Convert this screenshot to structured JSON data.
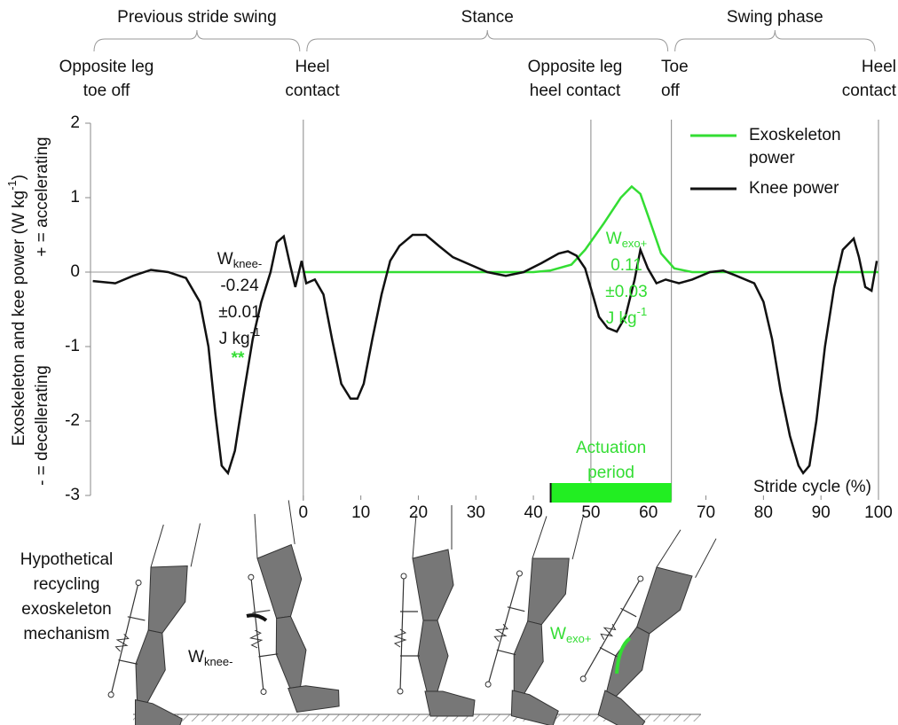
{
  "chart_data": {
    "type": "line",
    "x_label": "Stride cycle (%)",
    "y_label": {
      "main": "Exoskeleton and kee power (W kg",
      "sup": "-1",
      "close": ")"
    },
    "y_label_2": [
      "- = decellerating",
      "+ = accelerating"
    ],
    "xlim": [
      -37,
      100
    ],
    "ylim": [
      -3,
      2
    ],
    "xticks": [
      0,
      10,
      20,
      30,
      40,
      50,
      60,
      70,
      80,
      90,
      100
    ],
    "yticks": [
      -3,
      -2,
      -1,
      0,
      1,
      2
    ],
    "legend": "top-right",
    "vlines": [
      0,
      50,
      64
    ],
    "phases": [
      {
        "label": "Previous stride swing",
        "start": -37,
        "end": 0
      },
      {
        "label": "Stance",
        "start": 0,
        "end": 64
      },
      {
        "label": "Swing phase",
        "start": 64,
        "end": 100
      }
    ],
    "events": [
      [
        "Opposite leg",
        "toe off"
      ],
      [
        "Heel",
        "contact"
      ],
      [
        "Opposite leg",
        "heel contact"
      ],
      [
        "Toe",
        "off"
      ],
      [
        "Heel",
        "contact"
      ]
    ],
    "series": [
      {
        "name": "Exoskeleton power",
        "color": "#33dd33",
        "x": [
          0,
          20,
          40,
          42.9,
          46.6,
          49,
          52.2,
          55.2,
          57.1,
          58.6,
          60.2,
          62.2,
          64.5,
          67.6,
          80,
          100
        ],
        "values": [
          0,
          0,
          0,
          0.02,
          0.1,
          0.3,
          0.65,
          1.0,
          1.15,
          1.05,
          0.7,
          0.25,
          0.05,
          0,
          0,
          0
        ]
      },
      {
        "name": "Knee power",
        "color": "#111111",
        "x": [
          -36.6,
          -32.7,
          -29.6,
          -26.5,
          -23.5,
          -20.4,
          -18,
          -16.5,
          -15.3,
          -14.2,
          -13.1,
          -11.9,
          -10.3,
          -8.8,
          -7.3,
          -5.7,
          -4.6,
          -3.4,
          -2.3,
          -1.4,
          -0.3,
          0.5,
          2,
          3.5,
          5,
          6.6,
          8.2,
          9.4,
          10.5,
          12,
          13.6,
          15.1,
          16.7,
          19,
          21.3,
          23.6,
          26,
          29,
          32,
          35.2,
          38.3,
          41.4,
          44.4,
          46,
          47.5,
          49,
          50.3,
          51.4,
          52.9,
          54.5,
          56,
          57.6,
          58.6,
          59.9,
          61.4,
          63,
          65.3,
          67.6,
          70.7,
          73,
          75.3,
          78.4,
          80,
          81.5,
          83,
          84.6,
          86.1,
          86.9,
          88,
          89.2,
          90.7,
          92.3,
          93.8,
          95.7,
          96.6,
          97.7,
          98.8,
          99.7
        ],
        "values": [
          -0.12,
          -0.15,
          -0.05,
          0.03,
          0.0,
          -0.08,
          -0.4,
          -1.0,
          -1.9,
          -2.6,
          -2.7,
          -2.4,
          -1.6,
          -0.9,
          -0.4,
          0.0,
          0.4,
          0.48,
          0.1,
          -0.2,
          0.15,
          -0.15,
          -0.1,
          -0.3,
          -0.9,
          -1.5,
          -1.7,
          -1.7,
          -1.5,
          -0.9,
          -0.3,
          0.15,
          0.35,
          0.5,
          0.5,
          0.35,
          0.2,
          0.1,
          0.0,
          -0.05,
          0.0,
          0.12,
          0.25,
          0.28,
          0.22,
          0.05,
          -0.3,
          -0.6,
          -0.75,
          -0.8,
          -0.6,
          -0.1,
          0.3,
          0.05,
          -0.15,
          -0.1,
          -0.15,
          -0.1,
          0.0,
          0.02,
          -0.05,
          -0.15,
          -0.4,
          -0.9,
          -1.6,
          -2.2,
          -2.6,
          -2.7,
          -2.6,
          -2.0,
          -1.0,
          -0.2,
          0.3,
          0.45,
          0.2,
          -0.2,
          -0.25,
          0.15
        ]
      }
    ],
    "actuation": {
      "label": [
        "Actuation",
        "period"
      ],
      "start": 43,
      "end": 64
    },
    "w_knee": {
      "symbol": "W",
      "subscript": "knee-",
      "lines": [
        "-0.24",
        "±0.01"
      ],
      "unit": "J kg",
      "unit_sup": "-1",
      "significance": "**"
    },
    "w_exo": {
      "symbol": "W",
      "subscript": "exo+",
      "lines": [
        "0.11",
        "±0.03"
      ],
      "unit": "J kg",
      "unit_sup": "-1"
    }
  },
  "illustration": {
    "caption": [
      "Hypothetical",
      "recycling",
      "exoskeleton",
      "mechanism"
    ],
    "knee_label": {
      "symbol": "W",
      "subscript": "knee-"
    },
    "exo_label": {
      "symbol": "W",
      "subscript": "exo+"
    }
  }
}
